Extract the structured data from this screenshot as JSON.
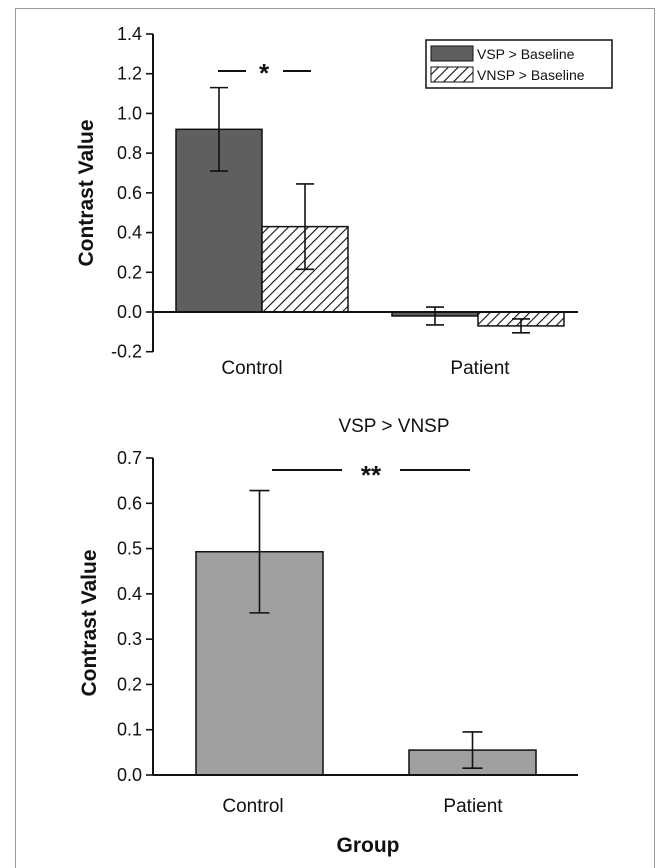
{
  "chart_data": [
    {
      "type": "bar",
      "title": "",
      "xlabel": "",
      "ylabel": "Contrast Value",
      "ylim": [
        -0.2,
        1.4
      ],
      "yticks": [
        "-0.2",
        "0.0",
        "0.2",
        "0.4",
        "0.6",
        "0.8",
        "1.0",
        "1.2",
        "1.4"
      ],
      "categories": [
        "Control",
        "Patient"
      ],
      "series": [
        {
          "name": "VSP > Baseline",
          "values": [
            0.92,
            -0.02
          ],
          "errors": [
            0.21,
            0.045
          ],
          "color": "#5f5f5f",
          "pattern": "solid"
        },
        {
          "name": "VNSP > Baseline",
          "values": [
            0.43,
            -0.07
          ],
          "errors": [
            0.215,
            0.035
          ],
          "color": "#ffffff",
          "pattern": "hatched"
        }
      ],
      "legend": "top-right",
      "annotation": "*"
    },
    {
      "type": "bar",
      "title": "VSP > VNSP",
      "xlabel": "Group",
      "ylabel": "Contrast Value",
      "ylim": [
        0.0,
        0.7
      ],
      "yticks": [
        "0.0",
        "0.1",
        "0.2",
        "0.3",
        "0.4",
        "0.5",
        "0.6",
        "0.7"
      ],
      "categories": [
        "Control",
        "Patient"
      ],
      "series": [
        {
          "values": [
            0.493,
            0.055
          ],
          "errors": [
            0.135,
            0.04
          ],
          "color": "#a0a0a0"
        }
      ],
      "annotation": "**"
    }
  ]
}
